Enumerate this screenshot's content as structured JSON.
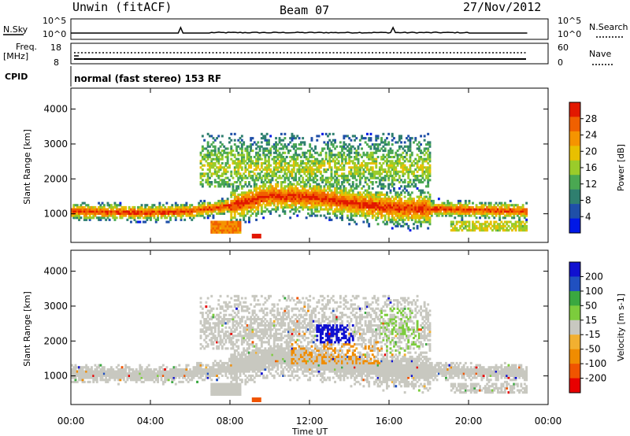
{
  "header": {
    "station": "Unwin (fitACF)",
    "beam": "Beam 07",
    "date": "27/Nov/2012"
  },
  "side_labels": {
    "nsky": "N.Sky",
    "freq": "Freq.",
    "freq_unit": "[MHz]",
    "cpid": "CPID",
    "nsearch": "N.Search",
    "nave": "Nave"
  },
  "cpid_text": "normal (fast stereo) 153 RF",
  "noise_panel": {
    "left_ticks": [
      "10^5",
      "10^0"
    ],
    "right_ticks": [
      "10^5",
      "10^0"
    ]
  },
  "freq_panel": {
    "left_ticks": [
      "18",
      "8"
    ],
    "right_ticks": [
      "60",
      "0"
    ]
  },
  "x_axis": {
    "label": "Time UT",
    "ticks": [
      "00:00",
      "04:00",
      "08:00",
      "12:00",
      "16:00",
      "20:00",
      "00:00"
    ]
  },
  "panel_y_axis": {
    "label": "Slant Range [km]",
    "ticks": [
      "1000",
      "2000",
      "3000",
      "4000"
    ]
  },
  "colors": {
    "power": [
      "#0018e6",
      "#1f4fa8",
      "#2f7f6f",
      "#4aa852",
      "#9acc2a",
      "#e8c000",
      "#f59400",
      "#f06000",
      "#e21800"
    ],
    "velocity": [
      "#e80000",
      "#f05400",
      "#f08c00",
      "#f2b030",
      "#c8c8c0",
      "#7ccc3c",
      "#3aa840",
      "#2050c0",
      "#1010d0"
    ]
  },
  "chart_data": [
    {
      "type": "heatmap",
      "title": "Power",
      "ylabel": "Slant Range [km]",
      "xlabel": "Time UT",
      "ylim": [
        180,
        4600
      ],
      "xlim_hours": [
        0,
        24
      ],
      "colorbar": {
        "label": "Power [dB]",
        "ticks": [
          "4",
          "8",
          "12",
          "16",
          "20",
          "24",
          "28"
        ],
        "range": [
          0,
          32
        ]
      },
      "features": [
        {
          "t_start": 0,
          "t_end": 22.9,
          "range_center_km": [
            1050,
            1000,
            1050,
            1200,
            1500,
            1450,
            1300,
            1150,
            1050
          ],
          "t_nodes": [
            0,
            4,
            6,
            8,
            10,
            12,
            14,
            16,
            22.9
          ],
          "peak_power_db": 26
        },
        {
          "t_start": 6.4,
          "t_end": 18,
          "range_km": [
            1800,
            3300
          ],
          "peak_power_db": 22
        }
      ]
    },
    {
      "type": "heatmap",
      "title": "Velocity",
      "ylabel": "Slant Range [km]",
      "xlabel": "Time UT",
      "ylim": [
        180,
        4600
      ],
      "xlim_hours": [
        0,
        24
      ],
      "colorbar": {
        "label": "Velocity [m s-1]",
        "ticks": [
          "200",
          "100",
          "50",
          "15",
          "-15",
          "-50",
          "-100",
          "-200"
        ],
        "range": [
          -250,
          250
        ]
      },
      "features": [
        {
          "t_start": 0,
          "t_end": 22.9,
          "dominant_velocity_ms": 0
        },
        {
          "t_start": 12.3,
          "t_end": 14.2,
          "range_km": [
            1900,
            2400
          ],
          "velocity_ms": 220
        },
        {
          "t_start": 11.0,
          "t_end": 15.5,
          "range_km": [
            1300,
            2000
          ],
          "velocity_ms": -60
        }
      ]
    }
  ]
}
